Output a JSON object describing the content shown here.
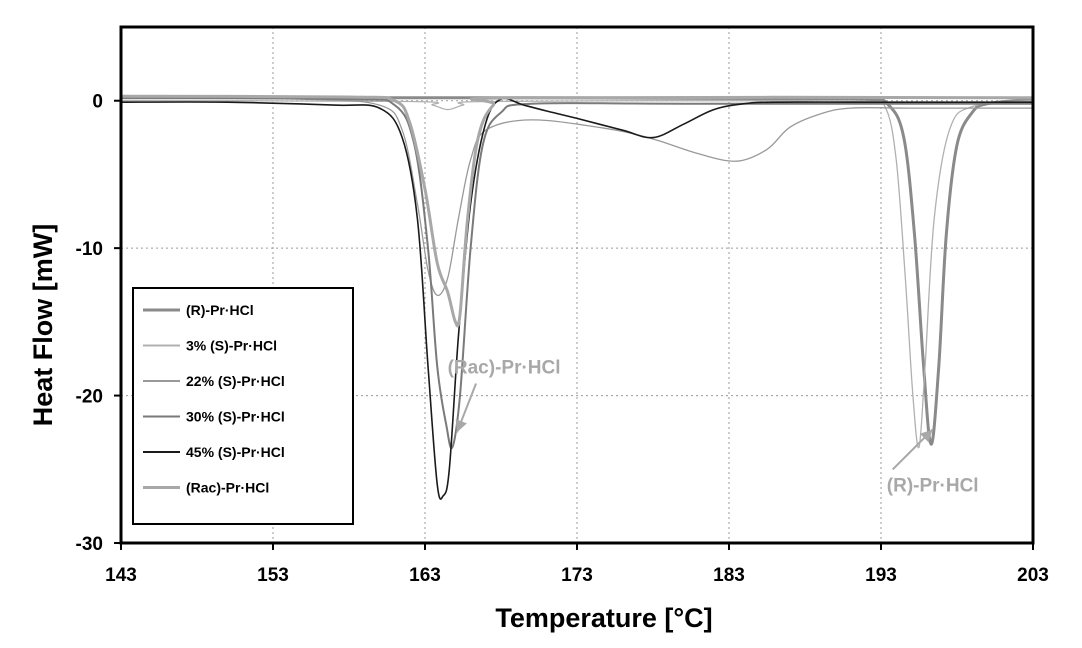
{
  "chart_data": {
    "type": "line",
    "xlabel": "Temperature [°C]",
    "ylabel": "Heat Flow [mW]",
    "xlim": [
      143,
      203
    ],
    "ylim": [
      -30,
      5
    ],
    "xticks": [
      143,
      153,
      163,
      173,
      183,
      193,
      203
    ],
    "yticks": [
      -30,
      -20,
      -10,
      0
    ],
    "grid": true,
    "legend_position": "bottom-left",
    "series": [
      {
        "name": "(R)-Pr·HCl",
        "color": "#8a8a8a",
        "points": [
          [
            143,
            0.2
          ],
          [
            170,
            0.2
          ],
          [
            185,
            0.15
          ],
          [
            192,
            0.1
          ],
          [
            193.5,
            -0.3
          ],
          [
            194.5,
            -2.5
          ],
          [
            195.2,
            -9
          ],
          [
            195.8,
            -18
          ],
          [
            196.3,
            -23.3
          ],
          [
            196.8,
            -18
          ],
          [
            197.3,
            -9
          ],
          [
            198,
            -3
          ],
          [
            199,
            -0.8
          ],
          [
            200,
            -0.2
          ],
          [
            203,
            0.1
          ]
        ]
      },
      {
        "name": "3% (S)-Pr·HCl",
        "color": "#b0b0b0",
        "points": [
          [
            143,
            0
          ],
          [
            162,
            -0.05
          ],
          [
            163.5,
            -0.3
          ],
          [
            164.5,
            -0.6
          ],
          [
            165.5,
            -0.3
          ],
          [
            167,
            -0.05
          ],
          [
            185,
            0
          ],
          [
            192,
            -0.05
          ],
          [
            193.3,
            -0.5
          ],
          [
            194,
            -4
          ],
          [
            194.6,
            -12
          ],
          [
            195.1,
            -20
          ],
          [
            195.5,
            -23.5
          ],
          [
            195.9,
            -18
          ],
          [
            196.5,
            -8
          ],
          [
            197.5,
            -2
          ],
          [
            199,
            -0.4
          ],
          [
            203,
            0
          ]
        ]
      },
      {
        "name": "22% (S)-Pr·HCl",
        "color": "#999999",
        "points": [
          [
            143,
            0.2
          ],
          [
            155,
            0.1
          ],
          [
            160,
            -0.3
          ],
          [
            161.5,
            -2
          ],
          [
            162.5,
            -7
          ],
          [
            163.2,
            -11.5
          ],
          [
            163.8,
            -13.2
          ],
          [
            164.5,
            -12
          ],
          [
            165.2,
            -8
          ],
          [
            166,
            -4
          ],
          [
            167,
            -2
          ],
          [
            170,
            -1.3
          ],
          [
            175,
            -1.9
          ],
          [
            178,
            -2.6
          ],
          [
            181,
            -3.6
          ],
          [
            183.5,
            -4.1
          ],
          [
            185.5,
            -3.3
          ],
          [
            187,
            -1.8
          ],
          [
            189,
            -0.9
          ],
          [
            191,
            -0.5
          ],
          [
            195,
            -0.5
          ],
          [
            203,
            -0.5
          ]
        ]
      },
      {
        "name": "30% (S)-Pr·HCl",
        "color": "#7a7a7a",
        "points": [
          [
            143,
            0.2
          ],
          [
            158,
            0.1
          ],
          [
            161,
            -0.3
          ],
          [
            162.3,
            -3
          ],
          [
            163.2,
            -10
          ],
          [
            163.8,
            -18
          ],
          [
            164.4,
            -22
          ],
          [
            164.8,
            -23.5
          ],
          [
            165.3,
            -20
          ],
          [
            166,
            -10
          ],
          [
            166.8,
            -3
          ],
          [
            168,
            -0.8
          ],
          [
            170,
            -0.2
          ],
          [
            180,
            -0.2
          ],
          [
            203,
            -0.2
          ]
        ]
      },
      {
        "name": "45% (S)-Pr·HCl",
        "color": "#1a1a1a",
        "points": [
          [
            143,
            -0.1
          ],
          [
            150,
            -0.1
          ],
          [
            157,
            -0.3
          ],
          [
            160,
            -0.5
          ],
          [
            161.5,
            -2.5
          ],
          [
            162.5,
            -8
          ],
          [
            163.2,
            -18
          ],
          [
            163.8,
            -26
          ],
          [
            164.2,
            -26.8
          ],
          [
            164.6,
            -25
          ],
          [
            165.2,
            -16
          ],
          [
            166,
            -7
          ],
          [
            167,
            -1.5
          ],
          [
            168,
            0.1
          ],
          [
            169.5,
            -0.3
          ],
          [
            171,
            -0.7
          ],
          [
            173,
            -1.2
          ],
          [
            176,
            -2
          ],
          [
            178,
            -2.5
          ],
          [
            180,
            -1.6
          ],
          [
            182,
            -0.6
          ],
          [
            184,
            -0.2
          ],
          [
            186,
            -0.1
          ],
          [
            192,
            -0.1
          ],
          [
            203,
            -0.1
          ]
        ]
      },
      {
        "name": "(Rac)-Pr·HCl",
        "color": "#a8a8a8",
        "points": [
          [
            143,
            0.3
          ],
          [
            158,
            0.25
          ],
          [
            161,
            0
          ],
          [
            162,
            -1.5
          ],
          [
            163,
            -6
          ],
          [
            163.8,
            -11
          ],
          [
            164.5,
            -13
          ],
          [
            165,
            -15
          ],
          [
            165.3,
            -14.5
          ],
          [
            165.8,
            -8
          ],
          [
            166.5,
            -2.5
          ],
          [
            167.5,
            -0.3
          ],
          [
            169,
            0.2
          ],
          [
            203,
            0.2
          ]
        ]
      }
    ],
    "annotations": [
      {
        "text": "(Rac)-Pr·HCl",
        "label_x": 168.2,
        "label_y": -18.5,
        "arrow_to": [
          165.1,
          -22.5
        ]
      },
      {
        "text": "(R)-Pr·HCl",
        "label_x": 196.4,
        "label_y": -26.5,
        "arrow_to": [
          196.4,
          -22.3
        ]
      }
    ]
  }
}
